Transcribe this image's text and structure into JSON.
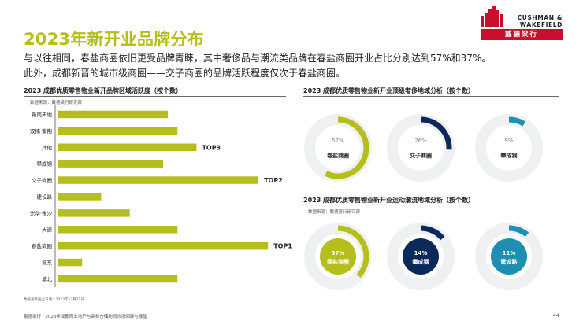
{
  "title": "2023年新开业品牌分布",
  "subtitle_lines": [
    "与以往相同，春盐商圈依旧更受品牌青睐，其中奢侈品与潮流类品牌在春盐商圈开业占比分别达到57%和37%。",
    "此外，成都新晋的城市级商圈——交子商圈的品牌活跃程度仅次于春盐商圈。"
  ],
  "logo": {
    "name_line1": "CUSHMAN &",
    "name_line2": "WAKEFIELD",
    "name_cn": "戴德梁行",
    "brand_color": "#c8102e"
  },
  "colors": {
    "accent": "#b5be1c",
    "navy": "#0b2a5b",
    "teal": "#1e8fb0",
    "track": "#eef0f2",
    "text": "#222222"
  },
  "chart_data": [
    {
      "type": "bar",
      "orientation": "horizontal",
      "title": "2023 成都优质零售物业新开品牌区域活跃度（按个数）",
      "source": "数据来源：戴德梁行研究部",
      "categories": [
        "新南天地",
        "双楠·紫荆",
        "其他",
        "攀成钢",
        "交子商圈",
        "建设路",
        "光华·金沙",
        "大源",
        "春盐商圈",
        "城东",
        "城北"
      ],
      "values": [
        23,
        25,
        29,
        22,
        42,
        9,
        15,
        25,
        44,
        5,
        25
      ],
      "data_labels": {
        "其他": "TOP3",
        "交子商圈": "TOP2",
        "春盐商圈": "TOP1"
      },
      "grid": false,
      "legend": "none"
    },
    {
      "type": "pie",
      "style": "donut-gauge",
      "title": "2023 成都优质零售物业新开业顶级奢侈地域分析（按个数）",
      "categories": [
        "春盐商圈",
        "交子商圈",
        "攀成钢"
      ],
      "values": [
        57,
        26,
        9
      ],
      "value_labels": [
        "57%",
        "26%",
        "9%"
      ],
      "series_colors": [
        "#b5be1c",
        "#0b2a5b",
        "#1e8fb0"
      ]
    },
    {
      "type": "pie",
      "style": "donut-gauge",
      "title": "2023 成都优质零售物业新开业运动潮流地域分析（按个数）",
      "source": "数据来源：戴德梁行研究部",
      "categories": [
        "春盐商圈",
        "攀成钢",
        "建设路"
      ],
      "values": [
        37,
        14,
        11
      ],
      "value_labels": [
        "37%",
        "14%",
        "11%"
      ],
      "series_colors": [
        "#b5be1c",
        "#0b2a5b",
        "#1e8fb0"
      ]
    }
  ],
  "footnote": "数据采集截止日期：2023年12月31日",
  "footer_text": "戴德梁行 | 2023年成都商业地产与高标仓储物流市场回顾与展望",
  "page_number": "44"
}
